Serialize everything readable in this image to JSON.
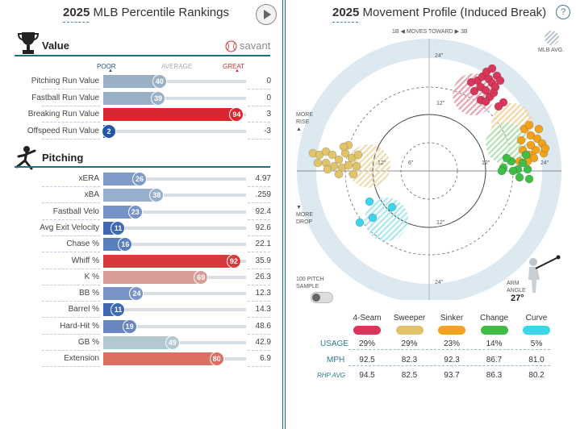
{
  "left": {
    "year": "2025",
    "title": " MLB Percentile Rankings",
    "value_section": "Value",
    "pitching_section": "Pitching",
    "savant": "savant",
    "scale": {
      "poor": "POOR",
      "average": "AVERAGE",
      "great": "GREAT"
    },
    "value_rows": [
      {
        "label": "Pitching Run Value",
        "pct": 40,
        "value": "0",
        "color": "#9ab0c4"
      },
      {
        "label": "Fastball Run Value",
        "pct": 39,
        "value": "0",
        "color": "#9ab0c4"
      },
      {
        "label": "Breaking Run Value",
        "pct": 94,
        "value": "3",
        "color": "#d8272e"
      },
      {
        "label": "Offspeed Run Value",
        "pct": 2,
        "value": "-3",
        "color": "#2457a6"
      }
    ],
    "pitching_rows": [
      {
        "label": "xERA",
        "pct": 26,
        "value": "4.97",
        "color": "#7f9bc8"
      },
      {
        "label": "xBA",
        "pct": 38,
        "value": ".259",
        "color": "#98aecd"
      },
      {
        "label": "Fastball Velo",
        "pct": 23,
        "value": "92.4",
        "color": "#7592c6"
      },
      {
        "label": "Avg Exit Velocity",
        "pct": 11,
        "value": "92.6",
        "color": "#3f69b2"
      },
      {
        "label": "Chase %",
        "pct": 16,
        "value": "22.1",
        "color": "#5a7fbd"
      },
      {
        "label": "Whiff %",
        "pct": 92,
        "value": "35.9",
        "color": "#d63a3c"
      },
      {
        "label": "K %",
        "pct": 69,
        "value": "26.3",
        "color": "#d69e96"
      },
      {
        "label": "BB %",
        "pct": 24,
        "value": "12.3",
        "color": "#7994c6"
      },
      {
        "label": "Barrel %",
        "pct": 11,
        "value": "14.3",
        "color": "#3f69b2"
      },
      {
        "label": "Hard-Hit %",
        "pct": 19,
        "value": "48.6",
        "color": "#6887c0"
      },
      {
        "label": "GB %",
        "pct": 49,
        "value": "42.9",
        "color": "#b4c8d2"
      },
      {
        "label": "Extension",
        "pct": 80,
        "value": "6.9",
        "color": "#dc6f62"
      }
    ]
  },
  "right": {
    "year": "2025",
    "title": " Movement Profile (Induced Break)",
    "moves_toward": {
      "left": "1B ◀",
      "mid": "MOVES TOWARD",
      "right": "▶ 3B"
    },
    "mlb_avg": "MLB AVG.",
    "more_rise": [
      "MORE",
      "RISE"
    ],
    "more_drop": [
      "MORE",
      "DROP"
    ],
    "ring_labels": {
      "top24": "24\"",
      "top12": "12\"",
      "left12": "12\"",
      "left6": "6\"",
      "right12": "12\"",
      "right24": "24\"",
      "bottom12": "12\"",
      "bottom24": "24\""
    },
    "sample": [
      "100 PITCH",
      "SAMPLE"
    ],
    "arm_angle_label": [
      "ARM",
      "ANGLE"
    ],
    "arm_angle": "27°",
    "pitches": [
      {
        "name": "4-Seam",
        "color": "#d9375a",
        "usage": "29%",
        "mph": "92.5",
        "rhp": "94.5"
      },
      {
        "name": "Sweeper",
        "color": "#e0c46c",
        "usage": "29%",
        "mph": "82.3",
        "rhp": "82.5"
      },
      {
        "name": "Sinker",
        "color": "#f3a21c",
        "usage": "23%",
        "mph": "92.3",
        "rhp": "93.7"
      },
      {
        "name": "Change",
        "color": "#3fbd46",
        "usage": "14%",
        "mph": "86.7",
        "rhp": "86.3"
      },
      {
        "name": "Curve",
        "color": "#3ed4ea",
        "usage": "5%",
        "mph": "81.0",
        "rhp": "80.2"
      }
    ],
    "row_labels": {
      "usage": "USAGE",
      "mph": "MPH",
      "rhp": "RHP AVG"
    }
  }
}
